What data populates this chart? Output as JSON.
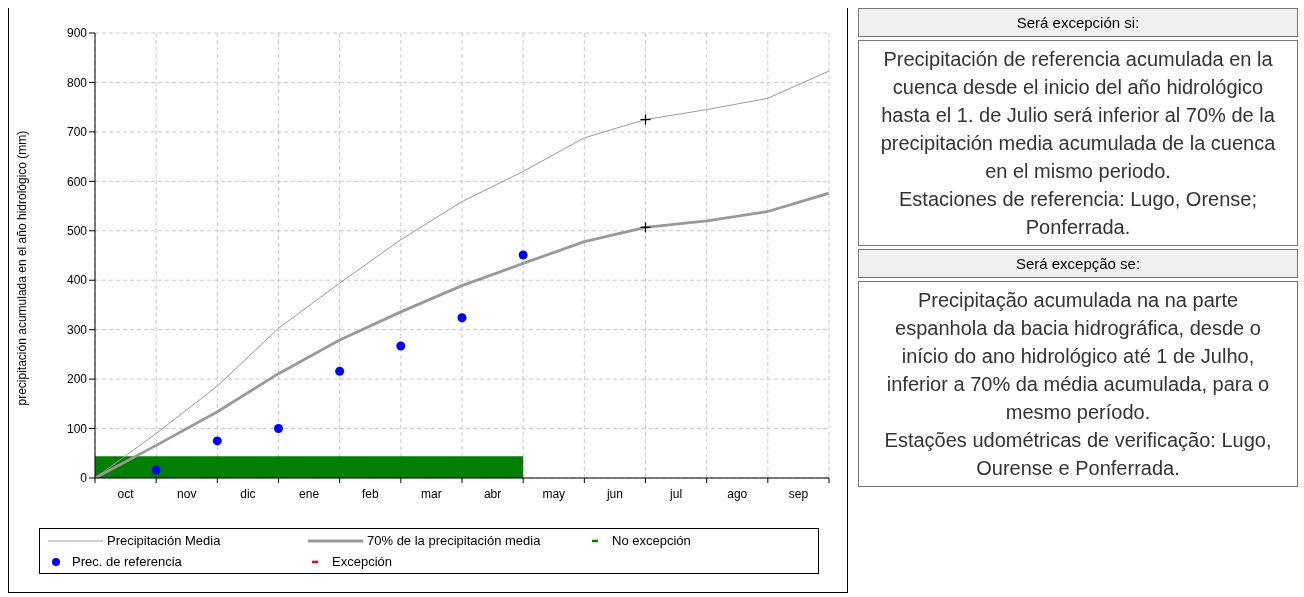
{
  "chart_data": [
    {
      "type": "line",
      "ylabel": "precipitación acumulada en el año hidrológico (mm)",
      "categories": [
        null,
        "oct",
        null,
        "nov",
        null,
        "dic",
        null,
        "ene",
        null,
        "feb",
        null,
        "mar",
        null,
        "abr",
        null,
        "may",
        null,
        "jun",
        null,
        "jul",
        null,
        "ago",
        null,
        "sep",
        null
      ],
      "ylim": [
        0,
        900
      ],
      "yticks": [
        0,
        100,
        200,
        300,
        400,
        500,
        600,
        700,
        800,
        900
      ],
      "grid": true,
      "legend": "bottom",
      "series": [
        {
          "name": "Precipitación Media",
          "type": "line",
          "color": "#999999",
          "marker": "none",
          "values": [
            0,
            null,
            90,
            null,
            186,
            null,
            303,
            null,
            394,
            null,
            482,
            null,
            559,
            null,
            620,
            null,
            688,
            null,
            725,
            null,
            745,
            null,
            768,
            null,
            823
          ]
        },
        {
          "name": "70% de la precipitación media",
          "type": "line",
          "color": "#999999",
          "marker": "none",
          "values": [
            0,
            null,
            66,
            null,
            134,
            null,
            211,
            null,
            279,
            null,
            336,
            null,
            389,
            null,
            434,
            null,
            478,
            null,
            507,
            null,
            520,
            null,
            539,
            null,
            576
          ]
        },
        {
          "name": "No excepción",
          "type": "area",
          "color": "#008000",
          "values": [
            44,
            44,
            44,
            44,
            44,
            44,
            44,
            44,
            44,
            44,
            44,
            44,
            44,
            44,
            44,
            null,
            null,
            null,
            null,
            null,
            null,
            null,
            null,
            null,
            null
          ]
        },
        {
          "name": "Prec. de referencia",
          "type": "scatter",
          "color": "#0000ff",
          "marker": "circle",
          "values": [
            null,
            null,
            16,
            null,
            75,
            null,
            100,
            null,
            216,
            null,
            267,
            null,
            324,
            null,
            451,
            null,
            null,
            null,
            null,
            null,
            null,
            null,
            null,
            null,
            null
          ]
        },
        {
          "name": "Excepción",
          "type": "bar",
          "color": "#ff0000",
          "values": [
            null,
            null,
            null,
            null,
            null,
            null,
            null,
            null,
            null,
            null,
            null,
            null,
            null,
            null,
            null,
            null,
            null,
            null,
            null,
            null,
            null,
            null,
            null,
            null,
            null
          ]
        },
        {
          "type": "scatter",
          "color": "#000000",
          "marker": "cross",
          "values": [
            null,
            null,
            null,
            null,
            null,
            null,
            null,
            null,
            null,
            null,
            null,
            null,
            null,
            null,
            null,
            null,
            null,
            null,
            725,
            null,
            null,
            null,
            null,
            null,
            null
          ]
        },
        {
          "type": "scatter",
          "color": "#000000",
          "marker": "cross",
          "values": [
            null,
            null,
            null,
            null,
            null,
            null,
            null,
            null,
            null,
            null,
            null,
            null,
            null,
            null,
            null,
            null,
            null,
            null,
            507,
            null,
            null,
            null,
            null,
            null,
            null
          ]
        }
      ]
    },
    {
      "type": "other",
      "title": "Será excepción si:",
      "annotations": [
        "Precipitación de referencia acumulada en la cuenca desde el inicio del año hidrológico hasta el 1. de Julio será inferior al 70% de la precipitación media acumulada de la cuenca en el mismo periodo.",
        "Estaciones de referencia: Lugo, Orense; Ponferrada."
      ]
    },
    {
      "type": "other",
      "title": "Será excepção se:",
      "annotations": [
        "Precipitação acumulada na na parte espanhola da bacia hidrográfica, desde o início do ano hidrológico até 1 de Julho, inferior a 70% da média acumulada, para o mesmo período.",
        "Estações udométricas de verificação: Lugo, Ourense e Ponferrada."
      ]
    }
  ]
}
